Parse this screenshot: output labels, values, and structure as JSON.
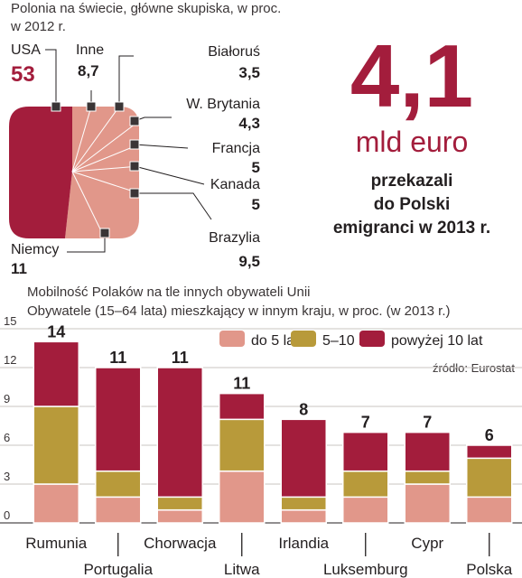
{
  "pie": {
    "title_line1": "Polonia na świecie, główne skupiska, w proc.",
    "title_line2": "w 2012  r.",
    "labels": [
      {
        "name": "USA",
        "value": "53"
      },
      {
        "name": "Inne",
        "value": "8,7"
      },
      {
        "name": "Białoruś",
        "value": "3,5"
      },
      {
        "name": "W. Brytania",
        "value": "4,3"
      },
      {
        "name": "Francja",
        "value": "5"
      },
      {
        "name": "Kanada",
        "value": "5"
      },
      {
        "name": "Brazylia",
        "value": "9,5"
      },
      {
        "name": "Niemcy",
        "value": "11"
      }
    ]
  },
  "headline": {
    "big_number": "4,1",
    "unit": "mld euro",
    "line1": "przekazali",
    "line2": "do Polski",
    "line3": "emigranci w 2013 r."
  },
  "bar_chart": {
    "title_line1": "Mobilność Polaków na tle innych obywateli Unii",
    "title_line2": "Obywatele (15–64 lata)  mieszkający w innym kraju, w proc. (w 2013 r.)",
    "source": "źródło: Eurostat"
  },
  "colors": {
    "short": "#e1978a",
    "medium": "#b89a3a",
    "long": "#a31d3c",
    "pie_light": "#e1978a",
    "pie_dark": "#a31d3c"
  },
  "chart_data": [
    {
      "type": "pie",
      "title": "Polonia na świecie, główne skupiska, w proc.",
      "categories": [
        "USA",
        "Inne",
        "Białoruś",
        "W. Brytania",
        "Francja",
        "Kanada",
        "Brazylia",
        "Niemcy"
      ],
      "values": [
        53,
        8.7,
        3.5,
        4.3,
        5,
        5,
        9.5,
        11
      ]
    },
    {
      "type": "bar",
      "stacked": true,
      "title": "Mobilność Polaków na tle innych obywateli Unii",
      "subtitle": "Obywatele (15–64 lata)  mieszkający w innym kraju, w proc. (w 2013 r.)",
      "categories": [
        "Rumunia",
        "Portugalia",
        "Chorwacja",
        "Litwa",
        "Irlandia",
        "Luksemburg",
        "Cypr",
        "Polska"
      ],
      "totals": [
        "14",
        "11",
        "11",
        "11",
        "8",
        "7",
        "7",
        "6"
      ],
      "series": [
        {
          "name": "do 5 lat",
          "values": [
            3,
            2,
            1,
            4,
            1,
            2,
            3,
            2
          ]
        },
        {
          "name": "5–10 lat",
          "values": [
            6,
            2,
            1,
            4,
            1,
            2,
            1,
            3
          ]
        },
        {
          "name": "powyżej 10 lat",
          "values": [
            5,
            8,
            10,
            2,
            6,
            3,
            3,
            1
          ]
        }
      ],
      "yticks": [
        "0",
        "3",
        "6",
        "9",
        "12",
        "15"
      ],
      "ylim": [
        0,
        15
      ],
      "grid": true,
      "legend": "top-right"
    }
  ]
}
